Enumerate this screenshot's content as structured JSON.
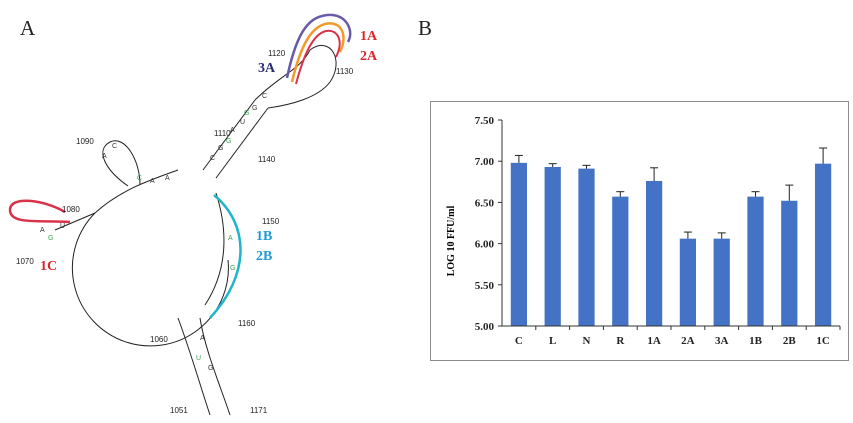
{
  "figure": {
    "panel_a_letter": "A",
    "panel_b_letter": "B"
  },
  "panel_a": {
    "sequence_positions": [
      "1051",
      "1060",
      "1070",
      "1080",
      "1090",
      "1110",
      "1120",
      "1130",
      "1140",
      "1150",
      "1160",
      "1171"
    ],
    "region_labels": [
      {
        "text": "1A",
        "color": "#d9262c"
      },
      {
        "text": "2A",
        "color": "#d9262c"
      },
      {
        "text": "3A",
        "color": "#2a2a7a"
      },
      {
        "text": "1B",
        "color": "#1e9bd7"
      },
      {
        "text": "2B",
        "color": "#1e9bd7"
      },
      {
        "text": "1C",
        "color": "#d9262c"
      }
    ],
    "highlight_colors": {
      "red": "#d9334a",
      "orange": "#f29a2e",
      "purple": "#6a5aa8",
      "cyan": "#1fb4c9",
      "green_base": "#3aa45a"
    }
  },
  "chart_data": {
    "type": "bar",
    "categories": [
      "C",
      "L",
      "N",
      "R",
      "1A",
      "2A",
      "3A",
      "1B",
      "2B",
      "1C"
    ],
    "values": [
      6.98,
      6.93,
      6.91,
      6.57,
      6.76,
      6.06,
      6.06,
      6.57,
      6.52,
      6.97
    ],
    "errors": [
      0.09,
      0.04,
      0.04,
      0.06,
      0.16,
      0.08,
      0.07,
      0.06,
      0.19,
      0.19
    ],
    "ylabel": "LOG 10 FFU/ml",
    "xlabel": "",
    "ylim": [
      5.0,
      7.5
    ],
    "yticks": [
      "5.00",
      "5.50",
      "6.00",
      "6.50",
      "7.00",
      "7.50"
    ],
    "bar_color": "#4472c4",
    "grid": false,
    "legend": "none"
  }
}
